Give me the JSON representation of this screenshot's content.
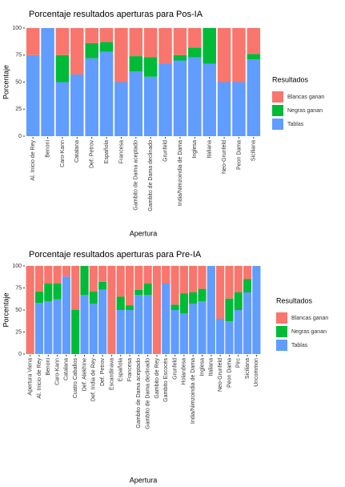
{
  "chart_data": [
    {
      "type": "bar",
      "stacked": true,
      "title": "Porcentaje resultados aperturas para Pos-IA",
      "x_label": "Apertura",
      "y_label": "Porcentaje",
      "legend_title": "Resultados",
      "legend": "right",
      "categories": [
        "Al. Inicio de Rey",
        "Benoni",
        "Caro-Kann",
        "Catalana",
        "Def. Petrov",
        "Española",
        "Francesa",
        "Gambito de Dama aceptado",
        "Gambito de Dama declinado",
        "Grunfeld",
        "India/Nimzoindia de Dama",
        "Inglesa",
        "Italiana",
        "Neo-Grunfeld",
        "Peon Dama",
        "Siciliana"
      ],
      "series": [
        {
          "name": "Blancas ganan",
          "color": "#F8766D",
          "values": [
            25,
            0,
            25,
            43,
            14,
            13,
            50,
            26,
            27,
            33,
            25,
            18,
            0,
            50,
            50,
            24
          ]
        },
        {
          "name": "Negras ganan",
          "color": "#00BA38",
          "values": [
            0,
            0,
            25,
            0,
            14,
            9,
            0,
            14,
            18,
            0,
            5,
            9,
            33,
            0,
            0,
            5
          ]
        },
        {
          "name": "Tablas",
          "color": "#619CFF",
          "values": [
            75,
            100,
            50,
            57,
            72,
            78,
            50,
            60,
            55,
            67,
            70,
            73,
            67,
            50,
            50,
            71
          ]
        }
      ],
      "ylim": [
        0,
        100
      ],
      "yticks": [
        0,
        25,
        50,
        75,
        100
      ]
    },
    {
      "type": "bar",
      "stacked": true,
      "title": "Porcentaje resultados aperturas para Pre-IA",
      "x_label": "Apertura",
      "y_label": "Porcentaje",
      "legend_title": "Resultados",
      "legend": "right",
      "categories": [
        "Apertura Viena",
        "Al. Inicio de Rey",
        "Benoni",
        "Caro-Kann",
        "Catalana",
        "Cuatro Caballos",
        "Def. Alekhine",
        "Def. India de Rey",
        "Def. Petrov",
        "Escandinava",
        "Española",
        "Francesa",
        "Gambito de Dama aceptado",
        "Gambito de Dama declinado",
        "Gambito de Rey",
        "Gambito Escocés",
        "Grunfeld",
        "Holandesa",
        "India/Nimzoindia de Dama",
        "Inglesa",
        "Italiana",
        "Neo-Grunfeld",
        "Peon Dama",
        "Pirc",
        "Siciliana",
        "Uncommon"
      ],
      "series": [
        {
          "name": "Blancas ganan",
          "color": "#F8766D",
          "values": [
            100,
            29,
            20,
            20,
            12,
            50,
            0,
            29,
            18,
            100,
            35,
            45,
            27,
            20,
            100,
            20,
            44,
            31,
            30,
            26,
            0,
            60,
            37,
            30,
            15,
            0
          ]
        },
        {
          "name": "Negras ganan",
          "color": "#00BA38",
          "values": [
            0,
            13,
            20,
            18,
            0,
            50,
            33,
            14,
            9,
            0,
            15,
            5,
            6,
            13,
            0,
            0,
            6,
            23,
            13,
            14,
            0,
            0,
            26,
            20,
            15,
            0
          ]
        },
        {
          "name": "Tablas",
          "color": "#619CFF",
          "values": [
            0,
            58,
            60,
            62,
            88,
            0,
            67,
            57,
            73,
            0,
            50,
            50,
            67,
            67,
            0,
            80,
            50,
            46,
            57,
            60,
            100,
            40,
            37,
            50,
            70,
            100
          ]
        }
      ],
      "ylim": [
        0,
        100
      ],
      "yticks": [
        0,
        25,
        50,
        75,
        100
      ]
    }
  ]
}
